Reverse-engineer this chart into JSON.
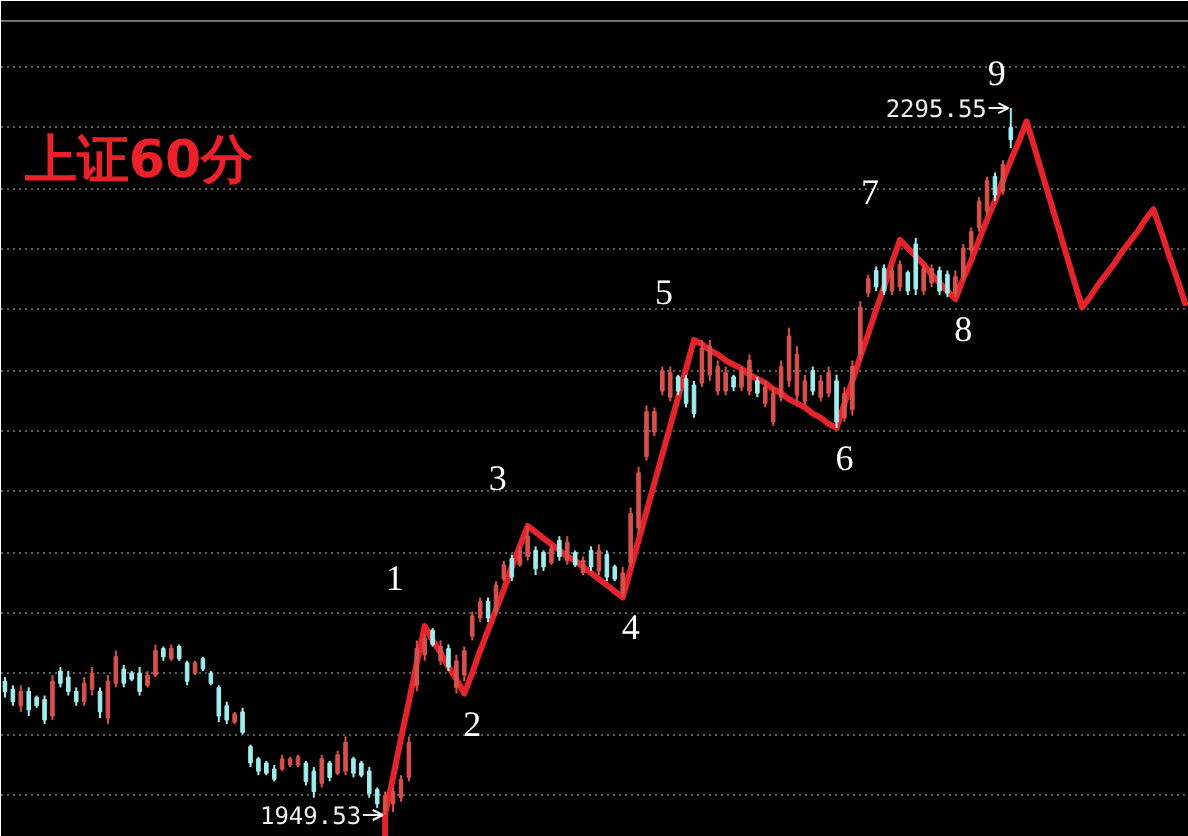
{
  "chart_data": {
    "type": "candlestick",
    "title": "上证60分",
    "categories": [
      null,
      null,
      null,
      null,
      null,
      null,
      null,
      null,
      null,
      null,
      null,
      null,
      null,
      null,
      null,
      null,
      null,
      null,
      null,
      null,
      null,
      null,
      null,
      null,
      null,
      null,
      null,
      null,
      null,
      null,
      null,
      null,
      null,
      null,
      null,
      null,
      null,
      null,
      null,
      null,
      null,
      null,
      null,
      null,
      null,
      null,
      null,
      null,
      null,
      null,
      null,
      null,
      null,
      null,
      null,
      null,
      null,
      null,
      null,
      null,
      null,
      null,
      null,
      null,
      null,
      null,
      null,
      null,
      null,
      null,
      null,
      null,
      null,
      null,
      null,
      null,
      null,
      null,
      null,
      null,
      null,
      null,
      null,
      null,
      null,
      null,
      null,
      null,
      null,
      null,
      null,
      null,
      null,
      null,
      null,
      null,
      null,
      null,
      null,
      null,
      null,
      null,
      null,
      null,
      null,
      null,
      null,
      null,
      null,
      null,
      null,
      null,
      null,
      null,
      null,
      null,
      null,
      null,
      null,
      null,
      null,
      null,
      null,
      null,
      null,
      null,
      null,
      null,
      null,
      null,
      null,
      null,
      null,
      null,
      null,
      null,
      null,
      null,
      null,
      null,
      null,
      null,
      null,
      null,
      null,
      null,
      null,
      null,
      null,
      null
    ],
    "ohlc": [
      [
        2015,
        2017,
        2007,
        2010
      ],
      [
        2011,
        2013,
        2003,
        2005
      ],
      [
        2003,
        2013,
        2000,
        2010
      ],
      [
        2010,
        2012,
        1998,
        2001
      ],
      [
        2007,
        2008,
        2002,
        2003
      ],
      [
        2006,
        2008,
        1994,
        1996
      ],
      [
        1998,
        2018,
        1996,
        2015
      ],
      [
        2020,
        2022,
        2012,
        2014
      ],
      [
        2017,
        2020,
        2008,
        2010
      ],
      [
        2010,
        2012,
        2003,
        2005
      ],
      [
        2005,
        2017,
        2003,
        2014
      ],
      [
        2011,
        2022,
        2008,
        2019
      ],
      [
        2010,
        2012,
        1997,
        2000
      ],
      [
        1997,
        2018,
        1994,
        2015
      ],
      [
        2014,
        2030,
        2012,
        2027
      ],
      [
        2021,
        2023,
        2012,
        2014
      ],
      [
        2019,
        2020,
        2015,
        2016
      ],
      [
        2019,
        2022,
        2008,
        2010
      ],
      [
        2013,
        2020,
        2012,
        2018
      ],
      [
        2018,
        2033,
        2017,
        2030
      ],
      [
        2031,
        2032,
        2025,
        2027
      ],
      [
        2026,
        2033,
        2025,
        2031
      ],
      [
        2032,
        2033,
        2025,
        2026
      ],
      [
        2024,
        2025,
        2013,
        2015
      ],
      [
        2019,
        2025,
        2018,
        2024
      ],
      [
        2026,
        2027,
        2020,
        2021
      ],
      [
        2019,
        2020,
        2013,
        2014
      ],
      [
        2012,
        2013,
        1995,
        1998
      ],
      [
        2003,
        2005,
        1994,
        1996
      ],
      [
        1995,
        2000,
        1994,
        1999
      ],
      [
        2000,
        2002,
        1989,
        1990
      ],
      [
        1983,
        1984,
        1973,
        1975
      ],
      [
        1977,
        1978,
        1969,
        1971
      ],
      [
        1975,
        1976,
        1969,
        1970
      ],
      [
        1972,
        1974,
        1966,
        1967
      ],
      [
        1972,
        1979,
        1971,
        1977
      ],
      [
        1974,
        1978,
        1973,
        1977
      ],
      [
        1974,
        1979,
        1973,
        1978
      ],
      [
        1975,
        1976,
        1964,
        1966
      ],
      [
        1971,
        1973,
        1958,
        1961
      ],
      [
        1965,
        1979,
        1963,
        1977
      ],
      [
        1975,
        1976,
        1966,
        1968
      ],
      [
        1970,
        1981,
        1969,
        1979
      ],
      [
        1971,
        1988,
        1969,
        1985
      ],
      [
        1977,
        1978,
        1968,
        1970
      ],
      [
        1975,
        1976,
        1968,
        1969
      ],
      [
        1971,
        1973,
        1958,
        1960
      ],
      [
        1962,
        1963,
        1953,
        1955
      ],
      [
        1952,
        1961,
        1949.53,
        1959
      ],
      [
        1955,
        1963,
        1951,
        1961
      ],
      [
        1958,
        1969,
        1956,
        1967
      ],
      [
        1968,
        1988,
        1966,
        1985
      ],
      [
        2013,
        2035,
        2010,
        2031
      ],
      [
        2028,
        2038,
        2025,
        2036
      ],
      [
        2040,
        2041,
        2032,
        2033
      ],
      [
        2025,
        2035,
        2023,
        2032
      ],
      [
        2031,
        2033,
        2020,
        2022
      ],
      [
        2012,
        2028,
        2009,
        2025
      ],
      [
        2018,
        2032,
        2015,
        2030
      ],
      [
        2037,
        2049,
        2035,
        2047
      ],
      [
        2046,
        2056,
        2044,
        2054
      ],
      [
        2054,
        2056,
        2044,
        2046
      ],
      [
        2049,
        2064,
        2047,
        2062
      ],
      [
        2065,
        2074,
        2064,
        2072
      ],
      [
        2075,
        2077,
        2064,
        2066
      ],
      [
        2072,
        2081,
        2071,
        2079
      ],
      [
        2076,
        2091,
        2074,
        2086
      ],
      [
        2079,
        2081,
        2067,
        2070
      ],
      [
        2078,
        2079,
        2069,
        2071
      ],
      [
        2073,
        2082,
        2072,
        2080
      ],
      [
        2084,
        2086,
        2074,
        2076
      ],
      [
        2074,
        2086,
        2072,
        2083
      ],
      [
        2078,
        2079,
        2071,
        2072
      ],
      [
        2068,
        2076,
        2067,
        2074
      ],
      [
        2079,
        2081,
        2069,
        2071
      ],
      [
        2069,
        2082,
        2067,
        2079
      ],
      [
        2077,
        2079,
        2064,
        2066
      ],
      [
        2071,
        2072,
        2064,
        2065
      ],
      [
        2058,
        2071,
        2056,
        2068
      ],
      [
        2073,
        2100,
        2071,
        2097
      ],
      [
        2090,
        2120,
        2087,
        2117
      ],
      [
        2125,
        2150,
        2123,
        2147
      ],
      [
        2137,
        2149,
        2135,
        2147
      ],
      [
        2157,
        2169,
        2155,
        2167
      ],
      [
        2154,
        2169,
        2152,
        2166
      ],
      [
        2164,
        2165,
        2155,
        2157
      ],
      [
        2163,
        2165,
        2149,
        2151
      ],
      [
        2160,
        2162,
        2144,
        2146
      ],
      [
        2161,
        2182,
        2159,
        2178
      ],
      [
        2165,
        2182,
        2162,
        2179
      ],
      [
        2157,
        2172,
        2155,
        2169
      ],
      [
        2157,
        2169,
        2155,
        2166
      ],
      [
        2164,
        2165,
        2157,
        2159
      ],
      [
        2159,
        2169,
        2157,
        2167
      ],
      [
        2157,
        2175,
        2155,
        2172
      ],
      [
        2162,
        2164,
        2154,
        2156
      ],
      [
        2151,
        2162,
        2149,
        2159
      ],
      [
        2142,
        2159,
        2140,
        2156
      ],
      [
        2154,
        2172,
        2152,
        2169
      ],
      [
        2162,
        2188,
        2159,
        2184
      ],
      [
        2155,
        2179,
        2152,
        2175
      ],
      [
        2152,
        2165,
        2150,
        2162
      ],
      [
        2167,
        2169,
        2155,
        2157
      ],
      [
        2154,
        2165,
        2152,
        2162
      ],
      [
        2156,
        2169,
        2154,
        2166
      ],
      [
        2162,
        2165,
        2139,
        2142
      ],
      [
        2144,
        2159,
        2142,
        2156
      ],
      [
        2148,
        2172,
        2145,
        2169
      ],
      [
        2175,
        2201,
        2172,
        2198
      ],
      [
        2205,
        2214,
        2203,
        2212
      ],
      [
        2216,
        2218,
        2206,
        2208
      ],
      [
        2217,
        2219,
        2204,
        2206
      ],
      [
        2206,
        2218,
        2204,
        2216
      ],
      [
        2208,
        2221,
        2206,
        2219
      ],
      [
        2215,
        2216,
        2204,
        2206
      ],
      [
        2229,
        2232,
        2204,
        2207
      ],
      [
        2206,
        2219,
        2204,
        2217
      ],
      [
        2210,
        2219,
        2208,
        2217
      ],
      [
        2216,
        2218,
        2204,
        2206
      ],
      [
        2214,
        2216,
        2203,
        2205
      ],
      [
        2205,
        2216,
        2203,
        2213
      ],
      [
        2213,
        2229,
        2211,
        2227
      ],
      [
        2226,
        2237,
        2224,
        2235
      ],
      [
        2237,
        2252,
        2235,
        2250
      ],
      [
        2245,
        2262,
        2243,
        2260
      ],
      [
        2262,
        2264,
        2250,
        2253
      ],
      [
        2255,
        2270,
        2253,
        2268
      ],
      [
        2286,
        2295.55,
        2276,
        2280
      ],
      null,
      null,
      null,
      null,
      null,
      null,
      null,
      null,
      null,
      null,
      null,
      null,
      null,
      null,
      null,
      null,
      null,
      null,
      null,
      null,
      null,
      null
    ],
    "colors": [
      "#a0eef0",
      "#a0eef0",
      "#d8504c",
      "#a0eef0",
      "#a0eef0",
      "#a0eef0",
      "#d8504c",
      "#a0eef0",
      "#a0eef0",
      "#a0eef0",
      "#d8504c",
      "#d8504c",
      "#a0eef0",
      "#d8504c",
      "#d8504c",
      "#a0eef0",
      "#a0eef0",
      "#a0eef0",
      "#d8504c",
      "#d8504c",
      "#a0eef0",
      "#d8504c",
      "#a0eef0",
      "#a0eef0",
      "#d8504c",
      "#a0eef0",
      "#a0eef0",
      "#a0eef0",
      "#a0eef0",
      "#d8504c",
      "#a0eef0",
      "#a0eef0",
      "#a0eef0",
      "#a0eef0",
      "#a0eef0",
      "#d8504c",
      "#d8504c",
      "#d8504c",
      "#a0eef0",
      "#a0eef0",
      "#d8504c",
      "#a0eef0",
      "#d8504c",
      "#d8504c",
      "#a0eef0",
      "#a0eef0",
      "#a0eef0",
      "#a0eef0",
      "#d8504c",
      "#d8504c",
      "#d8504c",
      "#d8504c",
      "#d8504c",
      "#d8504c",
      "#a0eef0",
      "#d8504c",
      "#a0eef0",
      "#d8504c",
      "#d8504c",
      "#d8504c",
      "#d8504c",
      "#a0eef0",
      "#d8504c",
      "#d8504c",
      "#a0eef0",
      "#d8504c",
      "#d8504c",
      "#a0eef0",
      "#a0eef0",
      "#d8504c",
      "#a0eef0",
      "#d8504c",
      "#a0eef0",
      "#d8504c",
      "#a0eef0",
      "#d8504c",
      "#a0eef0",
      "#a0eef0",
      "#d8504c",
      "#d8504c",
      "#d8504c",
      "#d8504c",
      "#d8504c",
      "#d8504c",
      "#d8504c",
      "#a0eef0",
      "#a0eef0",
      "#a0eef0",
      "#d8504c",
      "#d8504c",
      "#d8504c",
      "#d8504c",
      "#a0eef0",
      "#d8504c",
      "#d8504c",
      "#a0eef0",
      "#d8504c",
      "#d8504c",
      "#d8504c",
      "#d8504c",
      "#d8504c",
      "#d8504c",
      "#a0eef0",
      "#d8504c",
      "#d8504c",
      "#a0eef0",
      "#d8504c",
      "#d8504c",
      "#d8504c",
      "#d8504c",
      "#a0eef0",
      "#a0eef0",
      "#d8504c",
      "#d8504c",
      "#a0eef0",
      "#a0eef0",
      "#d8504c",
      "#d8504c",
      "#a0eef0",
      "#a0eef0",
      "#d8504c",
      "#d8504c",
      "#d8504c",
      "#d8504c",
      "#d8504c",
      "#a0eef0",
      "#d8504c",
      "#a0eef0",
      null,
      null,
      null,
      null,
      null,
      null,
      null,
      null,
      null,
      null,
      null,
      null,
      null,
      null,
      null,
      null,
      null,
      null,
      null,
      null,
      null,
      null
    ],
    "series": [
      {
        "type": "line",
        "color": "#e4232b",
        "values": [
          null,
          null,
          null,
          null,
          null,
          null,
          null,
          null,
          null,
          null,
          null,
          null,
          null,
          null,
          null,
          null,
          null,
          null,
          null,
          null,
          null,
          null,
          null,
          null,
          null,
          null,
          null,
          null,
          null,
          null,
          null,
          null,
          null,
          null,
          null,
          null,
          null,
          null,
          null,
          null,
          null,
          null,
          null,
          null,
          null,
          null,
          null,
          null,
          1950,
          1968,
          1987,
          2005,
          2024,
          2042,
          2035,
          2029,
          2022,
          2016,
          2009,
          2019,
          2030,
          2040,
          2050,
          2060,
          2071,
          2081,
          2091,
          2088,
          2085,
          2082,
          2079,
          2076,
          2074,
          2071,
          2068,
          2065,
          2062,
          2059,
          2056,
          2070,
          2084,
          2098,
          2112,
          2126,
          2140,
          2154,
          2168,
          2182,
          2180,
          2177,
          2175,
          2172,
          2170,
          2168,
          2165,
          2163,
          2161,
          2158,
          2156,
          2153,
          2151,
          2149,
          2146,
          2144,
          2141,
          2139,
          2151,
          2162,
          2174,
          2185,
          2197,
          2208,
          2220,
          2231,
          2227,
          2223,
          2219,
          2214,
          2210,
          2206,
          2202,
          2212,
          2221,
          2231,
          2241,
          2250,
          2260,
          2270,
          2279,
          2289,
          2276,
          2263,
          2250,
          2237,
          2224,
          2211,
          2198,
          2203,
          2209,
          2214,
          2219,
          2225,
          2230,
          2235,
          2241,
          2246,
          2235,
          2223,
          2212,
          2200
        ]
      }
    ],
    "annotations": [
      "1",
      "2",
      "3",
      "4",
      "5",
      "6",
      "7",
      "8",
      "9",
      "1949.53",
      "2295.55"
    ],
    "grid": "y"
  }
}
